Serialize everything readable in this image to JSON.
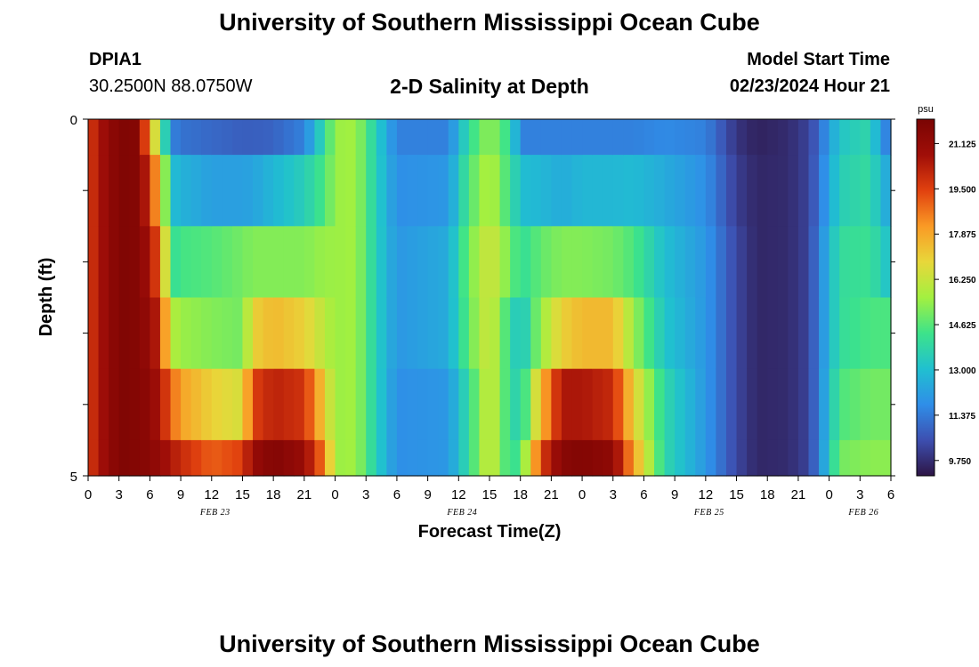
{
  "header": {
    "title": "University of Southern Mississippi Ocean Cube",
    "station_id": "DPIA1",
    "coords": "30.2500N  88.0750W",
    "chart_title": "2-D Salinity at Depth",
    "model_start_label": "Model Start Time",
    "model_start_value": "02/23/2024 Hour 21"
  },
  "footer": {
    "title": "University of Southern Mississippi Ocean Cube"
  },
  "colors": {
    "palette": [
      "#2d1545",
      "#3d4fb0",
      "#2f8ee8",
      "#20c0d0",
      "#3de38a",
      "#a3f040",
      "#e8d73a",
      "#fa9a25",
      "#e1410f",
      "#a00e08",
      "#7a0403"
    ]
  },
  "chart_data": {
    "type": "heatmap",
    "xlabel": "Forecast Time(Z)",
    "ylabel": "Depth (ft)",
    "x_tick_labels": [
      "0",
      "3",
      "6",
      "9",
      "12",
      "15",
      "18",
      "21",
      "0",
      "3",
      "6",
      "9",
      "12",
      "15",
      "18",
      "21",
      "0",
      "3",
      "6",
      "9",
      "12",
      "15",
      "18",
      "21",
      "0",
      "3",
      "6"
    ],
    "date_labels": [
      {
        "text": "FEB 23",
        "hour": 12
      },
      {
        "text": "FEB 24",
        "hour": 36
      },
      {
        "text": "FEB 25",
        "hour": 60
      },
      {
        "text": "FEB 26",
        "hour": 75
      }
    ],
    "y_tick_labels": [
      "0",
      "5"
    ],
    "xlim": [
      0,
      78
    ],
    "ylim": [
      0,
      5
    ],
    "colorbar": {
      "unit": "psu",
      "min": 9.2,
      "max": 22.0,
      "ticks": [
        "21.125",
        "19.500",
        "17.875",
        "16.250",
        "14.625",
        "13.000",
        "11.375",
        "9.750"
      ]
    },
    "depth_bands": [
      {
        "top": 0.0,
        "bottom": 0.5
      },
      {
        "top": 0.5,
        "bottom": 1.5
      },
      {
        "top": 1.5,
        "bottom": 2.5
      },
      {
        "top": 2.5,
        "bottom": 3.5
      },
      {
        "top": 3.5,
        "bottom": 4.5
      },
      {
        "top": 4.5,
        "bottom": 5.0
      }
    ],
    "salinity_keyframes": [
      {
        "hour": 0,
        "values": [
          19.5,
          19.5,
          19.5,
          19.5,
          19.5,
          19.5
        ]
      },
      {
        "hour": 1,
        "values": [
          20.5,
          20.5,
          20.5,
          20.5,
          20.5,
          20.5
        ]
      },
      {
        "hour": 3,
        "values": [
          21.8,
          21.8,
          21.8,
          21.8,
          21.8,
          21.8
        ]
      },
      {
        "hour": 5,
        "values": [
          21.6,
          21.6,
          21.6,
          21.6,
          21.6,
          21.6
        ]
      },
      {
        "hour": 6,
        "values": [
          17.6,
          19.5,
          20.5,
          21.0,
          21.3,
          21.5
        ]
      },
      {
        "hour": 7,
        "values": [
          15.5,
          17.5,
          19.0,
          20.0,
          20.5,
          21.0
        ]
      },
      {
        "hour": 8,
        "values": [
          11.6,
          13.0,
          14.0,
          16.0,
          19.0,
          20.5
        ]
      },
      {
        "hour": 9,
        "values": [
          11.2,
          12.7,
          14.4,
          15.5,
          18.0,
          20.0
        ]
      },
      {
        "hour": 12,
        "values": [
          11.0,
          12.2,
          14.6,
          15.2,
          17.0,
          19.0
        ]
      },
      {
        "hour": 15,
        "values": [
          10.8,
          12.2,
          15.0,
          15.0,
          16.5,
          19.5
        ]
      },
      {
        "hour": 16,
        "values": [
          10.8,
          12.3,
          15.2,
          17.0,
          19.5,
          21.0
        ]
      },
      {
        "hour": 18,
        "values": [
          10.9,
          12.8,
          15.2,
          17.5,
          20.2,
          21.7
        ]
      },
      {
        "hour": 21,
        "values": [
          11.5,
          13.5,
          15.2,
          17.0,
          19.8,
          21.0
        ]
      },
      {
        "hour": 23,
        "values": [
          14.0,
          14.5,
          15.5,
          16.0,
          17.0,
          18.5
        ]
      },
      {
        "hour": 24,
        "values": [
          15.5,
          15.5,
          15.5,
          15.5,
          15.5,
          15.5
        ]
      },
      {
        "hour": 26,
        "values": [
          15.6,
          15.6,
          15.6,
          15.6,
          15.6,
          15.6
        ]
      },
      {
        "hour": 28,
        "values": [
          13.5,
          13.5,
          13.5,
          13.5,
          13.5,
          13.5
        ]
      },
      {
        "hour": 30,
        "values": [
          11.5,
          11.8,
          12.0,
          12.0,
          11.8,
          11.8
        ]
      },
      {
        "hour": 35,
        "values": [
          11.5,
          12.0,
          12.5,
          12.5,
          12.0,
          12.0
        ]
      },
      {
        "hour": 37,
        "values": [
          14.0,
          14.5,
          15.0,
          14.8,
          14.0,
          14.0
        ]
      },
      {
        "hour": 39,
        "values": [
          15.5,
          16.0,
          16.5,
          16.5,
          16.5,
          16.5
        ]
      },
      {
        "hour": 41,
        "values": [
          14.0,
          14.2,
          15.0,
          14.0,
          14.0,
          14.0
        ]
      },
      {
        "hour": 42,
        "values": [
          11.5,
          13.0,
          14.0,
          13.0,
          13.5,
          14.5
        ]
      },
      {
        "hour": 44,
        "values": [
          11.5,
          12.8,
          14.8,
          15.5,
          17.5,
          19.5
        ]
      },
      {
        "hour": 46,
        "values": [
          11.5,
          12.5,
          15.2,
          17.0,
          20.5,
          21.5
        ]
      },
      {
        "hour": 48,
        "values": [
          11.5,
          12.8,
          15.2,
          17.5,
          20.5,
          21.7
        ]
      },
      {
        "hour": 51,
        "values": [
          11.5,
          12.8,
          15.0,
          17.5,
          20.0,
          21.3
        ]
      },
      {
        "hour": 53,
        "values": [
          11.5,
          12.9,
          14.5,
          15.5,
          17.0,
          18.0
        ]
      },
      {
        "hour": 56,
        "values": [
          11.7,
          12.5,
          13.0,
          13.2,
          13.8,
          13.8
        ]
      },
      {
        "hour": 60,
        "values": [
          11.5,
          11.8,
          12.0,
          12.0,
          12.0,
          12.0
        ]
      },
      {
        "hour": 63,
        "values": [
          9.9,
          10.1,
          10.3,
          10.3,
          10.3,
          10.3
        ]
      },
      {
        "hour": 65,
        "values": [
          9.5,
          9.6,
          9.6,
          9.6,
          9.6,
          9.6
        ]
      },
      {
        "hour": 68,
        "values": [
          9.7,
          9.7,
          9.7,
          9.7,
          9.7,
          9.7
        ]
      },
      {
        "hour": 70,
        "values": [
          10.2,
          10.2,
          10.2,
          10.2,
          10.2,
          10.2
        ]
      },
      {
        "hour": 71,
        "values": [
          11.0,
          11.2,
          11.5,
          11.5,
          11.5,
          11.5
        ]
      },
      {
        "hour": 73,
        "values": [
          13.2,
          13.5,
          14.0,
          14.0,
          14.5,
          15.0
        ]
      },
      {
        "hour": 76,
        "values": [
          13.8,
          14.0,
          14.2,
          14.5,
          15.0,
          15.3
        ]
      },
      {
        "hour": 77,
        "values": [
          12.0,
          12.8,
          13.5,
          14.5,
          15.0,
          15.3
        ]
      },
      {
        "hour": 78,
        "values": [
          11.2,
          12.3,
          13.0,
          14.5,
          15.0,
          15.3
        ]
      }
    ]
  }
}
